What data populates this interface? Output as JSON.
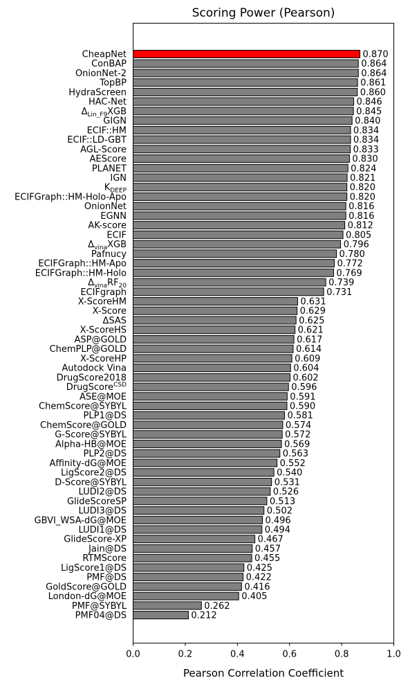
{
  "chart_data": {
    "type": "bar",
    "orientation": "horizontal",
    "title": "Scoring Power (Pearson)",
    "xlabel": "Pearson Correlation Coefficient",
    "ylabel": "",
    "xlim": [
      0,
      1.0
    ],
    "xticks": [
      "0.0",
      "0.2",
      "0.4",
      "0.6",
      "0.8",
      "1.0"
    ],
    "grid": false,
    "colors": {
      "highlight": "#ff0000",
      "default": "#808080",
      "edge": "#000000"
    },
    "bars": [
      {
        "label": "CheapNet",
        "value": 0.87,
        "value_label": "0.870",
        "highlight": true
      },
      {
        "label": "ConBAP",
        "value": 0.864,
        "value_label": "0.864"
      },
      {
        "label": "OnionNet-2",
        "value": 0.864,
        "value_label": "0.864"
      },
      {
        "label": "TopBP",
        "value": 0.861,
        "value_label": "0.861"
      },
      {
        "label": "HydraScreen",
        "value": 0.86,
        "value_label": "0.860"
      },
      {
        "label": "HAC-Net",
        "value": 0.846,
        "value_label": "0.846"
      },
      {
        "label": "ΔLin_F9XGB",
        "label_main": "Δ",
        "label_sub": "Lin_F9",
        "label_tail": "XGB",
        "value": 0.845,
        "value_label": "0.845"
      },
      {
        "label": "GIGN",
        "value": 0.84,
        "value_label": "0.840"
      },
      {
        "label": "ECIF::HM",
        "value": 0.834,
        "value_label": "0.834"
      },
      {
        "label": "ECIF::LD-GBT",
        "value": 0.834,
        "value_label": "0.834"
      },
      {
        "label": "AGL-Score",
        "value": 0.833,
        "value_label": "0.833"
      },
      {
        "label": "AEScore",
        "value": 0.83,
        "value_label": "0.830"
      },
      {
        "label": "PLANET",
        "value": 0.824,
        "value_label": "0.824"
      },
      {
        "label": "IGN",
        "value": 0.821,
        "value_label": "0.821"
      },
      {
        "label": "KDEEP",
        "label_main": "K",
        "label_sub": "DEEP",
        "label_tail": "",
        "value": 0.82,
        "value_label": "0.820"
      },
      {
        "label": "ECIFGraph::HM-Holo-Apo",
        "value": 0.82,
        "value_label": "0.820"
      },
      {
        "label": "OnionNet",
        "value": 0.816,
        "value_label": "0.816"
      },
      {
        "label": "EGNN",
        "value": 0.816,
        "value_label": "0.816"
      },
      {
        "label": "AK-score",
        "value": 0.812,
        "value_label": "0.812"
      },
      {
        "label": "ECIF",
        "value": 0.805,
        "value_label": "0.805"
      },
      {
        "label": "ΔvinaXGB",
        "label_main": "Δ",
        "label_sub": "vina",
        "label_tail": "XGB",
        "value": 0.796,
        "value_label": "0.796"
      },
      {
        "label": "Pafnucy",
        "value": 0.78,
        "value_label": "0.780"
      },
      {
        "label": "ECIFGraph::HM-Apo",
        "value": 0.772,
        "value_label": "0.772"
      },
      {
        "label": "ECIFGraph::HM-Holo",
        "value": 0.769,
        "value_label": "0.769"
      },
      {
        "label": "ΔvinaRF20",
        "label_main": "Δ",
        "label_sub": "vina",
        "label_tail": "RF",
        "label_sub2": "20",
        "value": 0.739,
        "value_label": "0.739"
      },
      {
        "label": "ECIFgraph",
        "value": 0.731,
        "value_label": "0.731"
      },
      {
        "label": "X-ScoreHM",
        "value": 0.631,
        "value_label": "0.631"
      },
      {
        "label": "X-Score",
        "value": 0.629,
        "value_label": "0.629"
      },
      {
        "label": "ΔSAS",
        "value": 0.625,
        "value_label": "0.625"
      },
      {
        "label": "X-ScoreHS",
        "value": 0.621,
        "value_label": "0.621"
      },
      {
        "label": "ASP@GOLD",
        "value": 0.617,
        "value_label": "0.617"
      },
      {
        "label": "ChemPLP@GOLD",
        "value": 0.614,
        "value_label": "0.614"
      },
      {
        "label": "X-ScoreHP",
        "value": 0.609,
        "value_label": "0.609"
      },
      {
        "label": "Autodock Vina",
        "value": 0.604,
        "value_label": "0.604"
      },
      {
        "label": "DrugScore2018",
        "value": 0.602,
        "value_label": "0.602"
      },
      {
        "label": "DrugScoreCSD",
        "label_main": "DrugScore",
        "label_sup": "CSD",
        "label_tail": "",
        "value": 0.596,
        "value_label": "0.596"
      },
      {
        "label": "ASE@MOE",
        "value": 0.591,
        "value_label": "0.591"
      },
      {
        "label": "ChemScore@SYBYL",
        "value": 0.59,
        "value_label": "0.590"
      },
      {
        "label": "PLP1@DS",
        "value": 0.581,
        "value_label": "0.581"
      },
      {
        "label": "ChemScore@GOLD",
        "value": 0.574,
        "value_label": "0.574"
      },
      {
        "label": "G-Score@SYBYL",
        "value": 0.572,
        "value_label": "0.572"
      },
      {
        "label": "Alpha-HB@MOE",
        "value": 0.569,
        "value_label": "0.569"
      },
      {
        "label": "PLP2@DS",
        "value": 0.563,
        "value_label": "0.563"
      },
      {
        "label": "Affinity-dG@MOE",
        "value": 0.552,
        "value_label": "0.552"
      },
      {
        "label": "LigScore2@DS",
        "value": 0.54,
        "value_label": "0.540"
      },
      {
        "label": "D-Score@SYBYL",
        "value": 0.531,
        "value_label": "0.531"
      },
      {
        "label": "LUDI2@DS",
        "value": 0.526,
        "value_label": "0.526"
      },
      {
        "label": "GlideScoreSP",
        "value": 0.513,
        "value_label": "0.513"
      },
      {
        "label": "LUDI3@DS",
        "value": 0.502,
        "value_label": "0.502"
      },
      {
        "label": "GBVI_WSA-dG@MOE",
        "value": 0.496,
        "value_label": "0.496"
      },
      {
        "label": "LUDI1@DS",
        "value": 0.494,
        "value_label": "0.494"
      },
      {
        "label": "GlideScore-XP",
        "value": 0.467,
        "value_label": "0.467"
      },
      {
        "label": "Jain@DS",
        "value": 0.457,
        "value_label": "0.457"
      },
      {
        "label": "RTMScore",
        "value": 0.455,
        "value_label": "0.455"
      },
      {
        "label": "LigScore1@DS",
        "value": 0.425,
        "value_label": "0.425"
      },
      {
        "label": "PMF@DS",
        "value": 0.422,
        "value_label": "0.422"
      },
      {
        "label": "GoldScore@GOLD",
        "value": 0.416,
        "value_label": "0.416"
      },
      {
        "label": "London-dG@MOE",
        "value": 0.405,
        "value_label": "0.405"
      },
      {
        "label": "PMF@SYBYL",
        "value": 0.262,
        "value_label": "0.262"
      },
      {
        "label": "PMF04@DS",
        "value": 0.212,
        "value_label": "0.212"
      }
    ]
  }
}
